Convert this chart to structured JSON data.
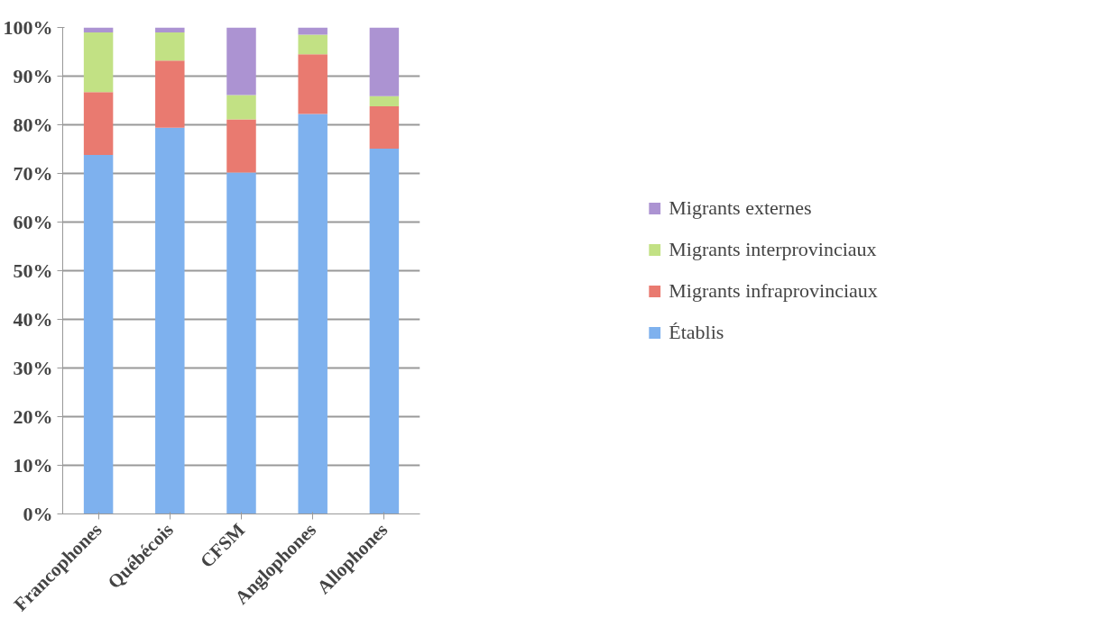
{
  "chart_data": {
    "type": "bar",
    "stacked": true,
    "categories": [
      "Francophones",
      "Québécois",
      "CFSM",
      "Anglophones",
      "Allophones"
    ],
    "series": [
      {
        "name": "Établis",
        "color": "#7eb1ee",
        "values": [
          73.8,
          79.4,
          70.2,
          82.2,
          75.1
        ]
      },
      {
        "name": "Migrants infraprovinciaux",
        "color": "#e97a70",
        "values": [
          12.9,
          13.8,
          10.9,
          12.3,
          8.7
        ]
      },
      {
        "name": "Migrants interprovinciaux",
        "color": "#c2e184",
        "values": [
          12.3,
          5.8,
          5.0,
          4.0,
          2.1
        ]
      },
      {
        "name": "Migrants externes",
        "color": "#ac93d2",
        "values": [
          1.0,
          1.0,
          13.9,
          1.5,
          14.1
        ]
      }
    ],
    "ylim": [
      0,
      100
    ],
    "yticks": [
      {
        "value": 0,
        "label": "0%"
      },
      {
        "value": 10,
        "label": "10%"
      },
      {
        "value": 20,
        "label": "20%"
      },
      {
        "value": 30,
        "label": "30%"
      },
      {
        "value": 40,
        "label": "40%"
      },
      {
        "value": 50,
        "label": "50%"
      },
      {
        "value": 60,
        "label": "60%"
      },
      {
        "value": 70,
        "label": "70%"
      },
      {
        "value": 80,
        "label": "80%"
      },
      {
        "value": 90,
        "label": "90%"
      },
      {
        "value": 100,
        "label": "100%"
      }
    ],
    "grid": "y",
    "legend": "right"
  }
}
